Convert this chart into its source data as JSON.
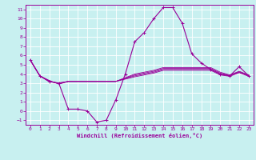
{
  "xlabel": "Windchill (Refroidissement éolien,°C)",
  "background_color": "#c8f0f0",
  "line_color": "#990099",
  "grid_color": "#ffffff",
  "xlim": [
    -0.5,
    23.5
  ],
  "ylim": [
    -1.5,
    11.5
  ],
  "xticks": [
    0,
    1,
    2,
    3,
    4,
    5,
    6,
    7,
    8,
    9,
    10,
    11,
    12,
    13,
    14,
    15,
    16,
    17,
    18,
    19,
    20,
    21,
    22,
    23
  ],
  "yticks": [
    -1,
    0,
    1,
    2,
    3,
    4,
    5,
    6,
    7,
    8,
    9,
    10,
    11
  ],
  "main_series": {
    "x": [
      0,
      1,
      2,
      3,
      4,
      5,
      6,
      7,
      8,
      9,
      10,
      11,
      12,
      13,
      14,
      15,
      16,
      17,
      18,
      19,
      20,
      21,
      22,
      23
    ],
    "y": [
      5.5,
      3.8,
      3.2,
      3.0,
      0.2,
      0.2,
      0.0,
      -1.2,
      -1.0,
      1.2,
      4.0,
      7.5,
      8.5,
      10.0,
      11.2,
      11.2,
      9.5,
      6.2,
      5.2,
      4.5,
      4.0,
      3.8,
      4.8,
      3.8
    ]
  },
  "band_series": [
    {
      "x": [
        0,
        1,
        2,
        3,
        4,
        5,
        6,
        7,
        8,
        9,
        10,
        11,
        12,
        13,
        14,
        15,
        16,
        17,
        18,
        19,
        20,
        21,
        22,
        23
      ],
      "y": [
        5.5,
        3.8,
        3.15,
        3.05,
        3.2,
        3.2,
        3.2,
        3.2,
        3.2,
        3.2,
        3.45,
        3.7,
        3.9,
        4.1,
        4.4,
        4.4,
        4.4,
        4.4,
        4.4,
        4.4,
        3.9,
        3.75,
        4.15,
        3.75
      ]
    },
    {
      "x": [
        0,
        1,
        2,
        3,
        4,
        5,
        6,
        7,
        8,
        9,
        10,
        11,
        12,
        13,
        14,
        15,
        16,
        17,
        18,
        19,
        20,
        21,
        22,
        23
      ],
      "y": [
        5.5,
        3.8,
        3.2,
        3.0,
        3.2,
        3.2,
        3.2,
        3.2,
        3.2,
        3.2,
        3.5,
        3.8,
        4.0,
        4.2,
        4.5,
        4.5,
        4.5,
        4.5,
        4.5,
        4.5,
        4.0,
        3.8,
        4.2,
        3.8
      ]
    },
    {
      "x": [
        0,
        1,
        2,
        3,
        4,
        5,
        6,
        7,
        8,
        9,
        10,
        11,
        12,
        13,
        14,
        15,
        16,
        17,
        18,
        19,
        20,
        21,
        22,
        23
      ],
      "y": [
        5.5,
        3.8,
        3.25,
        2.95,
        3.2,
        3.2,
        3.2,
        3.2,
        3.2,
        3.2,
        3.55,
        3.9,
        4.1,
        4.3,
        4.6,
        4.6,
        4.6,
        4.6,
        4.6,
        4.6,
        4.1,
        3.85,
        4.25,
        3.85
      ]
    },
    {
      "x": [
        0,
        1,
        2,
        3,
        4,
        5,
        6,
        7,
        8,
        9,
        10,
        11,
        12,
        13,
        14,
        15,
        16,
        17,
        18,
        19,
        20,
        21,
        22,
        23
      ],
      "y": [
        5.5,
        3.8,
        3.3,
        2.9,
        3.2,
        3.2,
        3.2,
        3.2,
        3.2,
        3.2,
        3.6,
        4.0,
        4.2,
        4.4,
        4.7,
        4.7,
        4.7,
        4.7,
        4.7,
        4.7,
        4.2,
        3.9,
        4.3,
        3.9
      ]
    }
  ]
}
